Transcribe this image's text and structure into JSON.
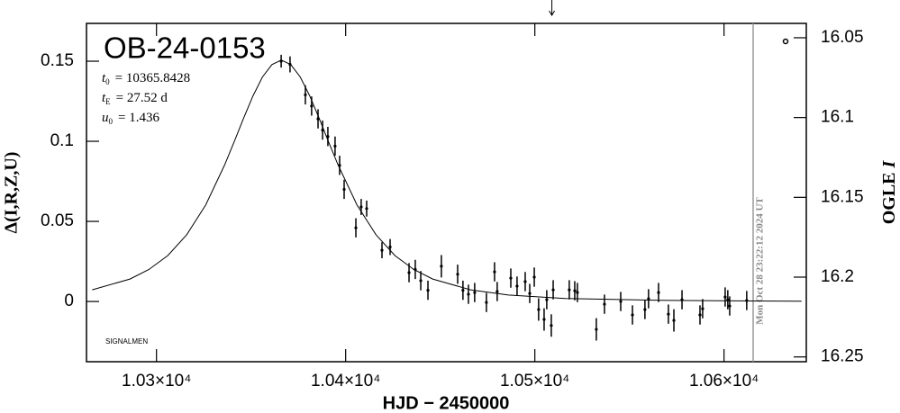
{
  "chart_data": {
    "type": "scatter",
    "title": "OB-24-0153",
    "params": [
      {
        "symbol": "t",
        "sub": "0",
        "text": "= 10365.8428"
      },
      {
        "symbol": "t",
        "sub": "E",
        "text": "= 27.52 d"
      },
      {
        "symbol": "u",
        "sub": "0",
        "text": "= 1.436"
      }
    ],
    "note": "SIGNALMEN",
    "timestamp": "Mon Oct 28 23:22:12 2024 UT",
    "xlabel": "HJD − 2450000",
    "ylabel": "Δ(I,R,Z,U)",
    "y2label": {
      "text": "OGLE",
      "var": "I"
    },
    "xlim": [
      10263,
      10643.5
    ],
    "xticks": [
      {
        "value": 10300,
        "label": "1.03×10⁴"
      },
      {
        "value": 10400,
        "label": "1.04×10⁴"
      },
      {
        "value": 10500,
        "label": "1.05×10⁴"
      },
      {
        "value": 10600,
        "label": "1.06×10⁴"
      }
    ],
    "ylim": [
      -0.0376,
      0.1736
    ],
    "yticks": [
      0,
      0.05,
      0.1,
      0.15
    ],
    "y2lim": [
      16.253,
      16.041
    ],
    "y2ticks": [
      16.05,
      16.1,
      16.15,
      16.2,
      16.25
    ],
    "now_x": 10615.4,
    "arrow_x": 10509,
    "series": [
      {
        "color": "#000000",
        "x": [
          10365.9,
          10370.6,
          10378.7,
          10382.0,
          10385.4,
          10387.8,
          10390.6,
          10394.4,
          10396.8,
          10399.2,
          10405.4,
          10408.2,
          10411.1,
          10419.2,
          10423.5,
          10433.5,
          10436.8,
          10439.7,
          10443.5,
          10450.6,
          10459.2,
          10462.0,
          10464.9,
          10468.2,
          10474.4,
          10478.7,
          10480.1,
          10487.3,
          10490.6,
          10494.9,
          10497.3,
          10499.7,
          10502.0,
          10504.9,
          10506.3,
          10508.7,
          10509.7,
          10518.2,
          10521.1,
          10522.5,
          10532.5,
          10536.8,
          10545.4,
          10551.6,
          10558.2,
          10560.1,
          10565.4,
          10570.6,
          10573.5,
          10577.8,
          10587.3,
          10588.7,
          10600.6,
          10602.0,
          10603.0,
          10612.0
        ],
        "values": [
          0.15,
          0.148,
          0.129,
          0.122,
          0.114,
          0.107,
          0.103,
          0.097,
          0.085,
          0.07,
          0.046,
          0.059,
          0.058,
          0.032,
          0.034,
          0.018,
          0.02,
          0.013,
          0.007,
          0.022,
          0.017,
          0.007,
          0.0045,
          0.0056,
          -0.0006,
          0.0185,
          0.0062,
          0.0146,
          0.0096,
          0.0124,
          0.005,
          0.0152,
          -0.005,
          -0.0112,
          0.0011,
          -0.015,
          0.0073,
          0.0073,
          0.0067,
          0.0056,
          -0.0174,
          -0.0017,
          0,
          -0.0084,
          -0.005,
          0.0017,
          0.0056,
          -0.0079,
          -0.0118,
          0.0011,
          -0.0084,
          -0.0045,
          0.0028,
          0.0011,
          -0.0028,
          0.0006
        ],
        "errors": [
          0.004,
          0.005,
          0.006,
          0.006,
          0.006,
          0.006,
          0.006,
          0.006,
          0.006,
          0.006,
          0.006,
          0.005,
          0.005,
          0.005,
          0.005,
          0.006,
          0.006,
          0.006,
          0.006,
          0.007,
          0.006,
          0.006,
          0.006,
          0.006,
          0.006,
          0.006,
          0.006,
          0.006,
          0.006,
          0.006,
          0.006,
          0.006,
          0.007,
          0.007,
          0.006,
          0.007,
          0.006,
          0.006,
          0.006,
          0.006,
          0.007,
          0.006,
          0.006,
          0.006,
          0.006,
          0.006,
          0.006,
          0.006,
          0.007,
          0.006,
          0.006,
          0.006,
          0.006,
          0.006,
          0.006,
          0.006
        ]
      }
    ],
    "model": {
      "color": "#000000",
      "x": [
        10266,
        10286,
        10296,
        10306,
        10316,
        10326,
        10336,
        10341,
        10346,
        10351,
        10356,
        10361,
        10366,
        10371,
        10376,
        10381,
        10386,
        10391,
        10396,
        10406,
        10416,
        10426,
        10436,
        10446,
        10466,
        10486,
        10516,
        10566,
        10616,
        10641
      ],
      "values": [
        0.0073,
        0.014,
        0.02,
        0.0287,
        0.0417,
        0.0602,
        0.0852,
        0.0995,
        0.1143,
        0.1283,
        0.1401,
        0.1479,
        0.1507,
        0.1479,
        0.1401,
        0.1283,
        0.1143,
        0.0995,
        0.0852,
        0.0602,
        0.0417,
        0.0287,
        0.02,
        0.014,
        0.0073,
        0.004,
        0.0019,
        0.0007,
        0.0003,
        0.0002
      ]
    }
  }
}
